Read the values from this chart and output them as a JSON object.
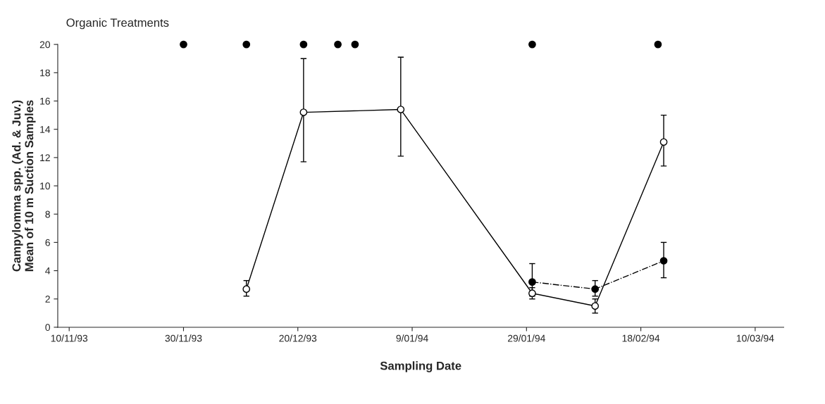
{
  "chart_data": {
    "type": "line",
    "xlabel": "Sampling Date",
    "ylabel": "Campylomma spp. (Ad. & Juv.)\nMean of 10 m Suction Samples",
    "annotations": [
      "Organic Treatments"
    ],
    "xlim": [
      "1993-11-08",
      "1994-03-15"
    ],
    "xticks": [
      {
        "value": "1993-11-10",
        "label": "10/11/93"
      },
      {
        "value": "1993-11-30",
        "label": "30/11/93"
      },
      {
        "value": "1993-12-20",
        "label": "20/12/93"
      },
      {
        "value": "1994-01-09",
        "label": "9/01/94"
      },
      {
        "value": "1994-01-29",
        "label": "29/01/94"
      },
      {
        "value": "1994-02-18",
        "label": "18/02/94"
      },
      {
        "value": "1994-03-10",
        "label": "10/03/94"
      }
    ],
    "ylim": [
      0,
      20
    ],
    "yticks": [
      0,
      2,
      4,
      6,
      8,
      10,
      12,
      14,
      16,
      18,
      20
    ],
    "grid": false,
    "legend": false,
    "series": [
      {
        "color": "#000000",
        "colors": [
          "#ffffff",
          "#ffffff",
          "#ffffff",
          "#ffffff",
          "#ffffff",
          "#ffffff"
        ],
        "marker": "circle",
        "line_style": "solid",
        "x": [
          "1993-12-11",
          "1993-12-21",
          "1994-01-07",
          "1994-01-30",
          "1994-02-10",
          "1994-02-22"
        ],
        "values": [
          2.7,
          15.2,
          15.4,
          2.4,
          1.5,
          13.1
        ],
        "errors": [
          [
            2.2,
            3.3
          ],
          [
            11.7,
            19.0
          ],
          [
            12.1,
            19.1
          ],
          [
            2.0,
            2.8
          ],
          [
            1.0,
            2.0
          ],
          [
            11.4,
            15.0
          ]
        ]
      },
      {
        "color": "#000000",
        "marker": "circle",
        "line_style": "dashdot",
        "x": [
          "1994-01-30",
          "1994-02-10",
          "1994-02-22"
        ],
        "values": [
          3.2,
          2.7,
          4.7
        ],
        "errors": [
          [
            2.2,
            4.5
          ],
          [
            2.2,
            3.3
          ],
          [
            3.5,
            6.0
          ]
        ]
      },
      {
        "type": "scatter",
        "color": "#000000",
        "marker": "circle",
        "x": [
          "1993-11-30",
          "1993-12-11",
          "1993-12-21",
          "1993-12-27",
          "1993-12-30",
          "1994-01-30",
          "1994-02-21"
        ],
        "values": [
          20,
          20,
          20,
          20,
          20,
          20,
          20
        ]
      }
    ]
  }
}
